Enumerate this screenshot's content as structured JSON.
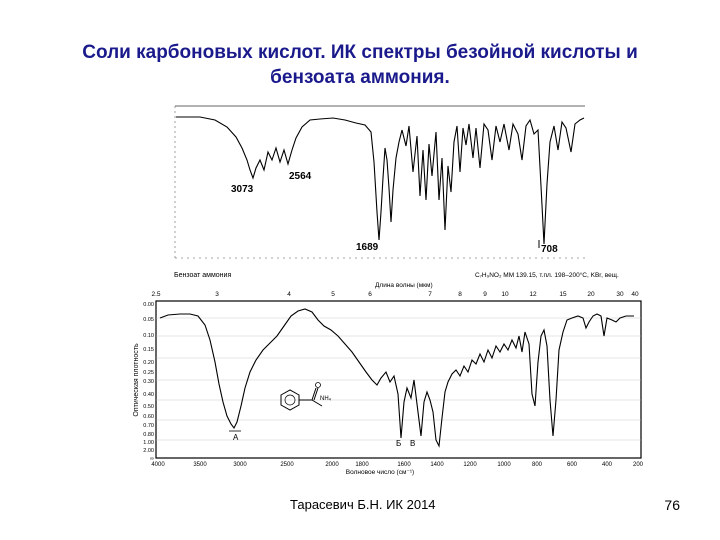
{
  "slide": {
    "title_line1": "Соли карбоновых кислот. ИК спектры безойной кислоты и",
    "title_line2": "бензоата аммония.",
    "footer": "Тарасевич Б.Н. ИК 2014",
    "page_number": "76"
  },
  "spectrum1": {
    "caption_left": "Бензоат аммония",
    "caption_right": "C₇H₉NO₂  MM 139.15, т.пл. 198–200°C, KBr, вещ.",
    "peak_labels": [
      "3073",
      "2564",
      "1689",
      "708"
    ]
  },
  "spectrum2": {
    "axis_top_label": "Длина волны (мкм)",
    "axis_top_ticks": [
      "2.5",
      "3",
      "4",
      "5",
      "6",
      "7",
      "8",
      "9",
      "10",
      "12",
      "15",
      "20",
      "30",
      "40"
    ],
    "axis_left_label": "Оптическая плотность",
    "axis_left_ticks": [
      "0.00",
      "0.05",
      "0.10",
      "0.15",
      "0.20",
      "0.25",
      "0.30",
      "0.40",
      "0.50",
      "0.60",
      "0.70",
      "0.80",
      "1.00",
      "2.00",
      "∞"
    ],
    "axis_bottom_label": "Волновое число (см⁻¹)",
    "axis_bottom_ticks": [
      "4000",
      "3500",
      "3000",
      "2500",
      "2000",
      "1800",
      "1600",
      "1400",
      "1200",
      "1000",
      "800",
      "600",
      "400",
      "200"
    ],
    "peak_marks": [
      "A",
      "Б",
      "В"
    ],
    "structure_group": "NH₄"
  },
  "colors": {
    "title": "#1a1a8c"
  }
}
